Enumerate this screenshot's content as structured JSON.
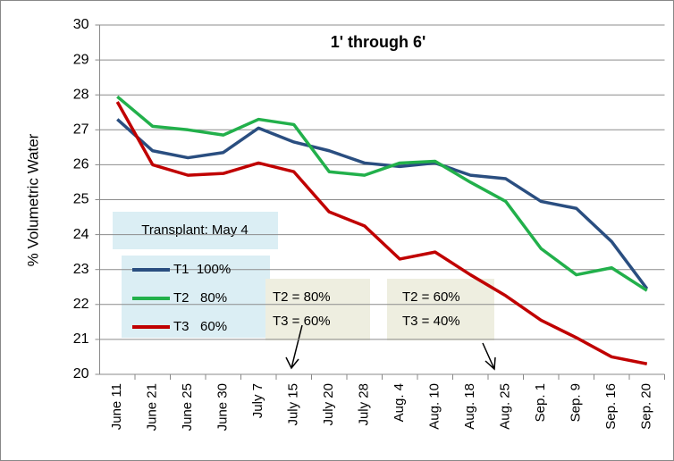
{
  "chart_data": {
    "type": "line",
    "title": "1' through 6'",
    "y_label": "% Volumetric Water",
    "categories": [
      "June 11",
      "June 21",
      "June 25",
      "June 30",
      "July 7",
      "July 15",
      "July 20",
      "July 28",
      "Aug. 4",
      "Aug. 10",
      "Aug. 18",
      "Aug. 25",
      "Sep. 1",
      "Sep. 9",
      "Sep. 16",
      "Sep. 20"
    ],
    "series": [
      {
        "name": "T1  100%",
        "color": "#2a4e80",
        "values": [
          27.3,
          26.4,
          26.2,
          26.35,
          27.05,
          26.65,
          26.4,
          26.05,
          25.95,
          26.05,
          25.7,
          25.6,
          24.95,
          24.75,
          23.8,
          22.45
        ]
      },
      {
        "name": "T2   80%",
        "color": "#22b04b",
        "values": [
          27.95,
          27.1,
          27.0,
          26.85,
          27.3,
          27.15,
          25.8,
          25.7,
          26.05,
          26.1,
          25.5,
          24.95,
          23.6,
          22.85,
          23.05,
          22.4
        ]
      },
      {
        "name": "T3   60%",
        "color": "#c00000",
        "values": [
          27.8,
          26.0,
          25.7,
          25.75,
          26.05,
          25.8,
          24.65,
          24.25,
          23.3,
          23.5,
          22.85,
          22.25,
          21.55,
          21.05,
          20.5,
          20.3
        ]
      }
    ],
    "ylim": [
      20,
      30
    ],
    "yticks": [
      20,
      21,
      22,
      23,
      24,
      25,
      26,
      27,
      28,
      29,
      30
    ],
    "grid": true,
    "transplant_note": "Transplant: May 4",
    "annotations": [
      {
        "lines": [
          "T2 = 80%",
          "T3 = 60%"
        ]
      },
      {
        "lines": [
          "T2 = 60%",
          "T3 = 40%"
        ]
      }
    ]
  }
}
